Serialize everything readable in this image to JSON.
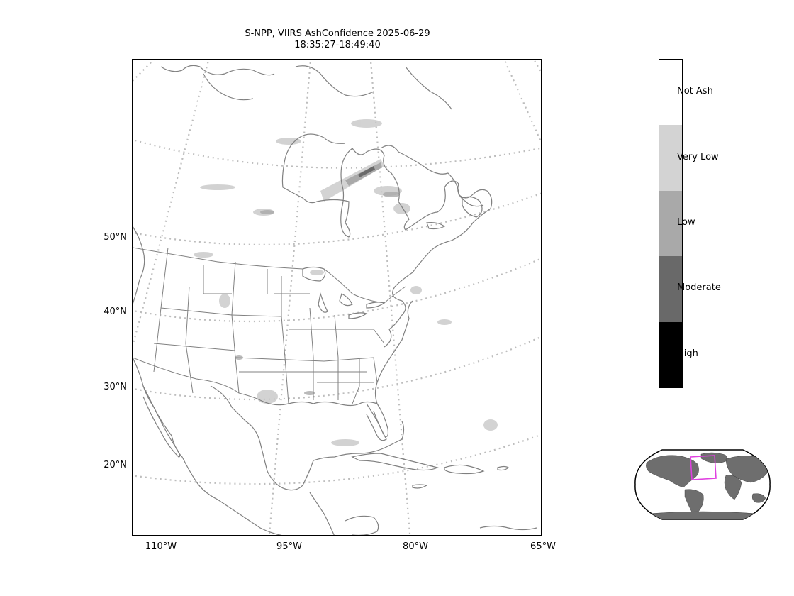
{
  "title": {
    "line1": "S-NPP, VIIRS AshConfidence 2025-06-29",
    "line2": "18:35:27-18:49:40"
  },
  "lat_labels": [
    "50°N",
    "40°N",
    "30°N",
    "20°N"
  ],
  "lon_labels": [
    "110°W",
    "95°W",
    "80°W",
    "65°W"
  ],
  "legend": {
    "categories": [
      {
        "label": "Not Ash",
        "color": "#ffffff"
      },
      {
        "label": "Very Low",
        "color": "#d3d3d3"
      },
      {
        "label": "Low",
        "color": "#a9a9a9"
      },
      {
        "label": "Moderate",
        "color": "#696969"
      },
      {
        "label": "High",
        "color": "#000000"
      }
    ]
  },
  "colors": {
    "coastline": "#808080",
    "graticule": "#bdbdbd",
    "inset_land": "#6e6e6e",
    "inset_box": "#e040e0"
  },
  "inset": {
    "name": "world-locator-map"
  }
}
